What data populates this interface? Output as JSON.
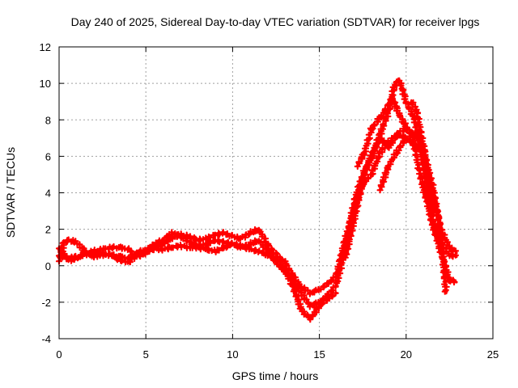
{
  "chart_data": {
    "type": "scatter",
    "title": "Day 240 of 2025, Sidereal Day-to-day VTEC variation (SDTVAR) for receiver lpgs",
    "xlabel": "GPS time / hours",
    "ylabel": "SDTVAR / TECUs",
    "xlim": [
      0,
      25
    ],
    "ylim": [
      -4,
      12
    ],
    "xticks": [
      "0",
      "5",
      "10",
      "15",
      "20",
      "25"
    ],
    "yticks": [
      "-4",
      "-2",
      "0",
      "2",
      "4",
      "6",
      "8",
      "10",
      "12"
    ],
    "grid": true,
    "marker": "+",
    "color": "#ff0000",
    "series": [
      {
        "name": "track-1",
        "x": [
          0,
          0.3,
          0.6,
          1.0,
          1.5,
          2.0,
          2.5,
          3.0,
          3.5,
          4.0,
          4.5,
          5.0,
          5.5,
          6.0,
          6.5,
          7.0,
          7.5,
          8.0,
          8.5,
          9.0,
          9.5,
          10.0,
          10.5,
          11.0,
          11.5,
          12.0,
          12.5,
          13.0,
          13.5,
          14.0,
          14.5,
          15.0,
          15.5,
          16.0,
          16.5,
          17.0,
          17.5,
          18.0,
          18.5,
          19.0,
          19.3,
          19.6,
          20.0,
          20.5,
          21.0,
          21.5,
          22.0,
          22.5,
          22.9
        ],
        "y": [
          0.3,
          1.3,
          1.4,
          1.3,
          0.8,
          0.5,
          0.6,
          0.6,
          0.5,
          0.4,
          0.7,
          0.9,
          1.0,
          1.2,
          1.5,
          1.7,
          1.6,
          1.4,
          1.5,
          1.7,
          1.8,
          1.6,
          1.5,
          1.8,
          2.0,
          1.2,
          0.6,
          0.2,
          -0.6,
          -1.2,
          -1.5,
          -1.3,
          -1.0,
          -0.5,
          1.5,
          3.0,
          4.5,
          5.0,
          6.2,
          6.8,
          7.0,
          7.3,
          7.5,
          7.2,
          6.5,
          4.0,
          2.0,
          1.0,
          0.7
        ]
      },
      {
        "name": "track-2",
        "x": [
          0,
          0.3,
          0.6,
          1.0,
          1.5,
          2.0,
          2.5,
          3.0,
          3.5,
          4.0,
          4.5,
          5.0,
          5.5,
          6.0,
          6.5,
          7.0,
          7.5,
          8.0,
          8.5,
          9.0,
          9.5,
          10.0,
          10.5,
          11.0,
          11.5,
          12.0,
          12.5,
          13.0,
          13.5,
          14.0,
          14.5,
          15.0,
          15.5,
          16.0,
          16.5,
          17.0,
          17.5,
          18.0,
          18.5,
          19.0,
          19.3,
          19.6,
          20.0,
          20.5,
          21.0,
          21.5,
          22.0,
          22.5,
          22.9
        ],
        "y": [
          1.0,
          0.6,
          0.3,
          0.4,
          0.7,
          0.8,
          0.9,
          1.0,
          1.0,
          0.9,
          0.5,
          0.7,
          1.2,
          1.4,
          1.8,
          1.6,
          1.3,
          1.1,
          1.2,
          1.4,
          1.3,
          1.2,
          1.0,
          1.2,
          1.4,
          0.8,
          0.2,
          -0.3,
          -0.8,
          -1.6,
          -2.2,
          -2.0,
          -1.6,
          -1.0,
          1.0,
          3.5,
          5.0,
          6.0,
          7.2,
          8.5,
          9.8,
          10.2,
          9.0,
          8.0,
          5.5,
          2.5,
          1.2,
          0.6,
          0.5
        ]
      },
      {
        "name": "track-3",
        "x": [
          0,
          0.5,
          1.0,
          1.5,
          2.0,
          2.5,
          3.0,
          3.5,
          4.0,
          4.5,
          5.0,
          5.5,
          6.0,
          6.5,
          7.0,
          7.5,
          8.0,
          8.5,
          9.0,
          9.5,
          10.0,
          10.5,
          11.0,
          11.5,
          12.0,
          12.5,
          13.0,
          13.5,
          14.0,
          14.5,
          15.0,
          15.5,
          16.0
        ],
        "y": [
          0.6,
          0.4,
          0.5,
          0.6,
          0.7,
          0.7,
          0.6,
          0.3,
          0.2,
          0.6,
          0.8,
          0.9,
          0.9,
          1.0,
          1.1,
          1.0,
          1.0,
          0.9,
          0.8,
          1.0,
          1.2,
          1.1,
          0.9,
          0.8,
          0.6,
          0.3,
          -0.2,
          -1.2,
          -2.5,
          -2.9,
          -2.2,
          -1.8,
          -1.5
        ]
      },
      {
        "name": "track-4",
        "x": [
          16.5,
          17.0,
          17.5,
          18.0,
          18.5,
          19.0,
          19.5,
          20.0,
          20.5,
          21.0,
          21.5,
          22.0,
          22.3
        ],
        "y": [
          0.5,
          2.5,
          4.8,
          6.0,
          7.0,
          6.5,
          7.2,
          7.0,
          6.6,
          6.2,
          4.5,
          1.8,
          -1.5
        ]
      },
      {
        "name": "track-5",
        "x": [
          17.2,
          17.6,
          18.0,
          18.4,
          18.8,
          19.2,
          19.6,
          20.0,
          20.4,
          20.8,
          21.2,
          21.6,
          22.0,
          22.5,
          22.9
        ],
        "y": [
          5.5,
          6.2,
          7.5,
          8.0,
          8.5,
          9.2,
          8.3,
          7.6,
          7.0,
          5.0,
          3.5,
          2.0,
          0.8,
          -0.8,
          -0.9
        ]
      },
      {
        "name": "track-6",
        "x": [
          18.5,
          19.0,
          19.5,
          20.0,
          20.3
        ],
        "y": [
          4.2,
          5.5,
          6.3,
          7.0,
          6.8
        ]
      },
      {
        "name": "track-7",
        "x": [
          20.3,
          20.6,
          21.0,
          21.3,
          21.6
        ],
        "y": [
          9.0,
          8.5,
          6.5,
          4.2,
          2.8
        ]
      }
    ]
  }
}
